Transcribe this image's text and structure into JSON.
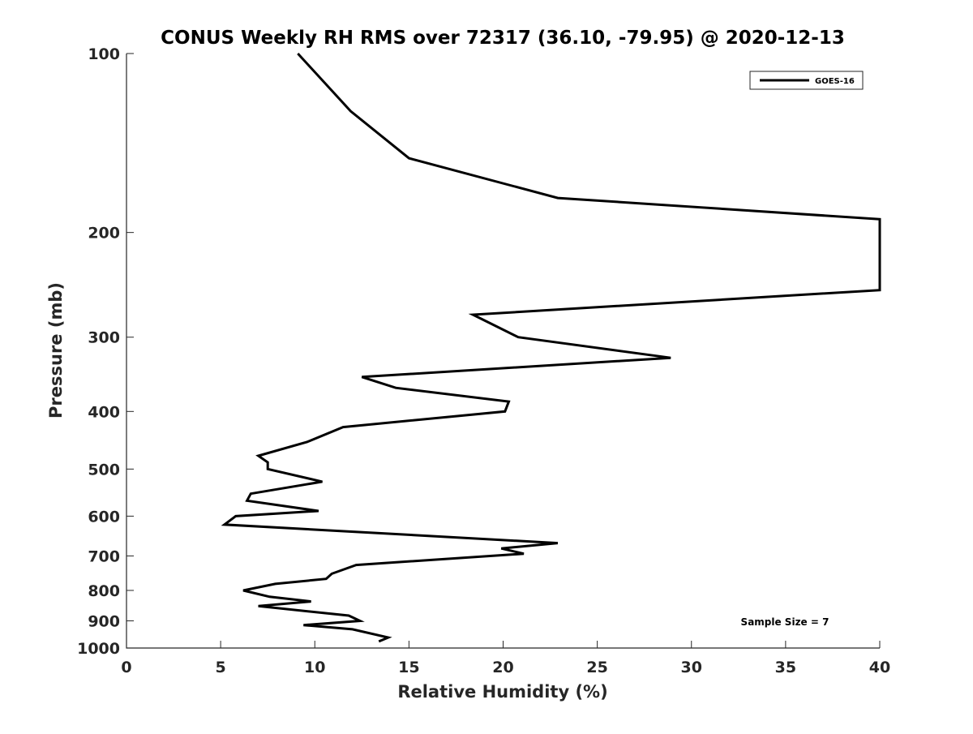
{
  "chart_data": {
    "type": "line",
    "title": "CONUS Weekly RH RMS over 72317 (36.10, -79.95) @ 2020-12-13",
    "xlabel": "Relative Humidity (%)",
    "ylabel": "Pressure (mb)",
    "xlim": [
      0,
      40
    ],
    "ylim": [
      100,
      1000
    ],
    "y_scale": "log",
    "y_reversed": true,
    "x_ticks": [
      "0",
      "5",
      "10",
      "15",
      "20",
      "25",
      "30",
      "35",
      "40"
    ],
    "y_ticks": [
      "100",
      "200",
      "300",
      "400",
      "500",
      "600",
      "700",
      "800",
      "900",
      "1000"
    ],
    "grid": false,
    "legend_position": "top-right",
    "series": [
      {
        "name": "GOES-16",
        "color": "#000000",
        "points": [
          [
            9.1,
            100
          ],
          [
            11.9,
            125
          ],
          [
            15.0,
            150
          ],
          [
            22.9,
            175
          ],
          [
            40.0,
            190
          ],
          [
            40.0,
            250
          ],
          [
            18.4,
            275
          ],
          [
            20.8,
            300
          ],
          [
            28.9,
            325
          ],
          [
            12.5,
            350
          ],
          [
            14.3,
            365
          ],
          [
            20.3,
            385
          ],
          [
            20.1,
            400
          ],
          [
            11.5,
            425
          ],
          [
            9.6,
            450
          ],
          [
            7.0,
            475
          ],
          [
            7.5,
            487
          ],
          [
            7.5,
            500
          ],
          [
            10.4,
            525
          ],
          [
            6.6,
            550
          ],
          [
            6.4,
            565
          ],
          [
            10.2,
            588
          ],
          [
            5.8,
            600
          ],
          [
            5.2,
            620
          ],
          [
            22.9,
            666
          ],
          [
            19.9,
            680
          ],
          [
            21.1,
            694
          ],
          [
            12.2,
            725
          ],
          [
            10.9,
            750
          ],
          [
            10.6,
            765
          ],
          [
            7.9,
            780
          ],
          [
            6.2,
            800
          ],
          [
            7.6,
            820
          ],
          [
            9.8,
            835
          ],
          [
            7.0,
            850
          ],
          [
            11.8,
            882
          ],
          [
            12.4,
            900
          ],
          [
            9.4,
            915
          ],
          [
            12.0,
            930
          ],
          [
            13.9,
            960
          ],
          [
            13.4,
            975
          ]
        ]
      }
    ],
    "annotation": "Sample Size = 7"
  }
}
